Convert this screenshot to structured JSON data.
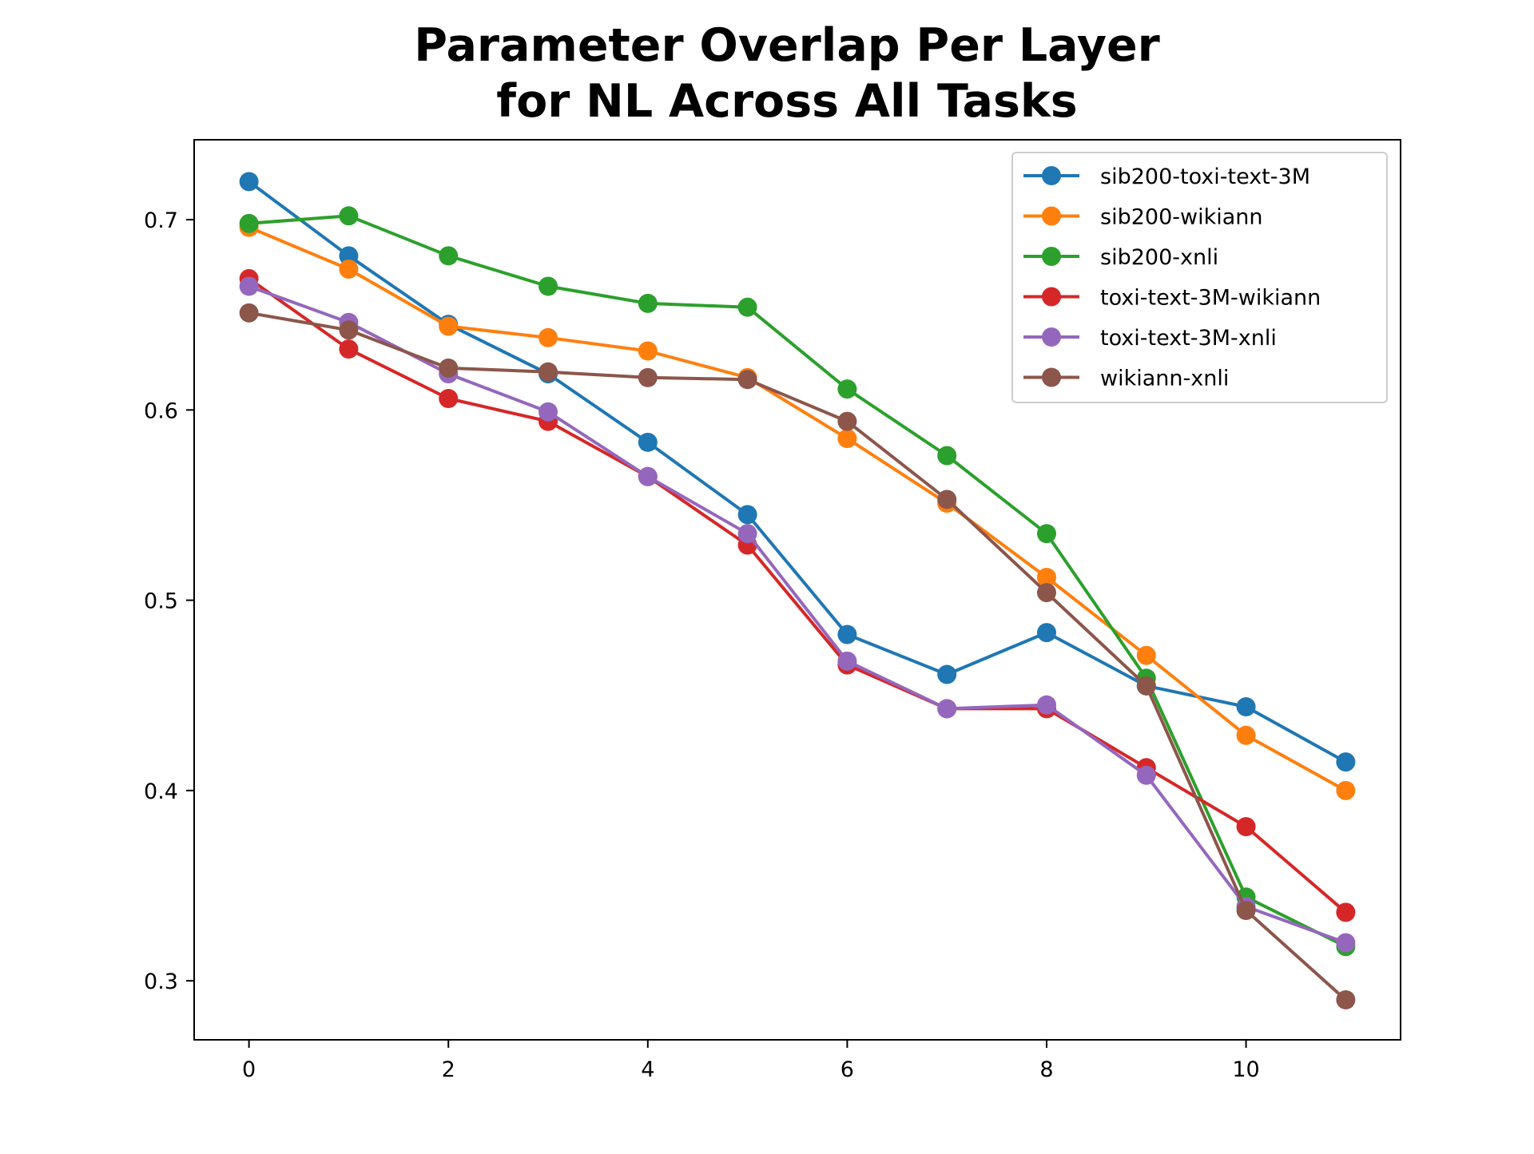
{
  "chart_data": {
    "type": "line",
    "title_lines": [
      "Parameter Overlap Per Layer",
      "for NL Across All Tasks"
    ],
    "xlabel": "",
    "ylabel": "",
    "x": [
      0,
      1,
      2,
      3,
      4,
      5,
      6,
      7,
      8,
      9,
      10,
      11
    ],
    "xlim": [
      -0.55,
      11.55
    ],
    "ylim": [
      0.269,
      0.742
    ],
    "xticks": [
      0,
      2,
      4,
      6,
      8,
      10
    ],
    "yticks": [
      0.3,
      0.4,
      0.5,
      0.6,
      0.7
    ],
    "xtick_labels": [
      "0",
      "2",
      "4",
      "6",
      "8",
      "10"
    ],
    "ytick_labels": [
      "0.3",
      "0.4",
      "0.5",
      "0.6",
      "0.7"
    ],
    "grid": false,
    "legend_position": "top-right",
    "marker": "circle",
    "series": [
      {
        "name": "sib200-toxi-text-3M",
        "color": "#1f77b4",
        "values": [
          0.72,
          0.681,
          0.645,
          0.619,
          0.583,
          0.545,
          0.482,
          0.461,
          0.483,
          0.455,
          0.444,
          0.415
        ]
      },
      {
        "name": "sib200-wikiann",
        "color": "#ff7f0e",
        "values": [
          0.696,
          0.674,
          0.644,
          0.638,
          0.631,
          0.617,
          0.585,
          0.551,
          0.512,
          0.471,
          0.429,
          0.4
        ]
      },
      {
        "name": "sib200-xnli",
        "color": "#2ca02c",
        "values": [
          0.698,
          0.702,
          0.681,
          0.665,
          0.656,
          0.654,
          0.611,
          0.576,
          0.535,
          0.459,
          0.344,
          0.318
        ]
      },
      {
        "name": "toxi-text-3M-wikiann",
        "color": "#d62728",
        "values": [
          0.669,
          0.632,
          0.606,
          0.594,
          0.565,
          0.529,
          0.466,
          0.443,
          0.443,
          0.412,
          0.381,
          0.336
        ]
      },
      {
        "name": "toxi-text-3M-xnli",
        "color": "#9467bd",
        "values": [
          0.665,
          0.646,
          0.619,
          0.599,
          0.565,
          0.535,
          0.468,
          0.443,
          0.445,
          0.408,
          0.339,
          0.32
        ]
      },
      {
        "name": "wikiann-xnli",
        "color": "#8c564b",
        "values": [
          0.651,
          0.642,
          0.622,
          0.62,
          0.617,
          0.616,
          0.594,
          0.553,
          0.504,
          0.455,
          0.337,
          0.29
        ]
      }
    ]
  }
}
